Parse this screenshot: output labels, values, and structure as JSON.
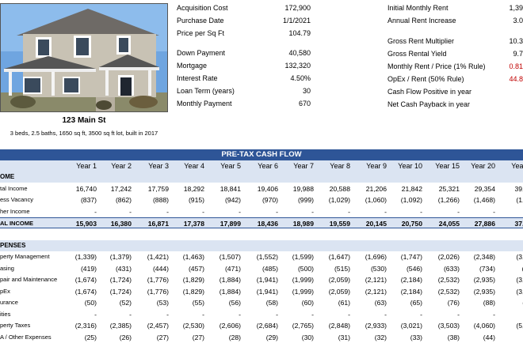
{
  "property": {
    "address": "123 Main St",
    "details": "3 beds, 2.5 baths, 1650 sq ft, 3500 sq ft lot, built in 2017"
  },
  "purchase": [
    {
      "label": "Acquisition Cost",
      "value": "172,900"
    },
    {
      "label": "Purchase Date",
      "value": "1/1/2021"
    },
    {
      "label": "Price per Sq Ft",
      "value": "104.79"
    }
  ],
  "financing": [
    {
      "label": "Down Payment",
      "value": "40,580"
    },
    {
      "label": "Mortgage",
      "value": "132,320"
    },
    {
      "label": "Interest Rate",
      "value": "4.50%"
    },
    {
      "label": "Loan Term (years)",
      "value": "30"
    },
    {
      "label": "Monthly Payment",
      "value": "670"
    }
  ],
  "rent_top": [
    {
      "label": "Initial Monthly Rent",
      "value": "1,39"
    },
    {
      "label": "Annual Rent Increase",
      "value": "3.0"
    }
  ],
  "metrics": [
    {
      "label": "Gross Rent Multiplier",
      "value": "10.3",
      "red": false
    },
    {
      "label": "Gross Rental Yield",
      "value": "9.7",
      "red": false
    },
    {
      "label": "Monthly Rent / Price (1% Rule)",
      "value": "0.81",
      "red": true
    },
    {
      "label": "OpEx / Rent (50% Rule)",
      "value": "44.8",
      "red": true
    },
    {
      "label": "Cash Flow Positive in year",
      "value": "",
      "red": false
    },
    {
      "label": "Net Cash Payback in year",
      "value": "",
      "red": false
    }
  ],
  "cashflow": {
    "title": "PRE-TAX CASH FLOW",
    "years": [
      "Year 1",
      "Year 2",
      "Year 3",
      "Year 4",
      "Year 5",
      "Year 6",
      "Year 7",
      "Year 8",
      "Year 9",
      "Year 10",
      "Year 15",
      "Year 20",
      "Year 3"
    ],
    "income_header": "OME",
    "income_rows": [
      {
        "label": "tal Income",
        "values": [
          "16,740",
          "17,242",
          "17,759",
          "18,292",
          "18,841",
          "19,406",
          "19,988",
          "20,588",
          "21,206",
          "21,842",
          "25,321",
          "29,354",
          "39,44"
        ]
      },
      {
        "label": "ess Vacancy",
        "values": [
          "(837)",
          "(862)",
          "(888)",
          "(915)",
          "(942)",
          "(970)",
          "(999)",
          "(1,029)",
          "(1,060)",
          "(1,092)",
          "(1,266)",
          "(1,468)",
          "(1,97"
        ]
      },
      {
        "label": "her Income",
        "values": [
          "-",
          "-",
          "-",
          "-",
          "-",
          "-",
          "-",
          "-",
          "-",
          "-",
          "-",
          "-",
          "-"
        ]
      }
    ],
    "income_total": {
      "label": "AL INCOME",
      "values": [
        "15,903",
        "16,380",
        "16,871",
        "17,378",
        "17,899",
        "18,436",
        "18,989",
        "19,559",
        "20,145",
        "20,750",
        "24,055",
        "27,886",
        "37,47"
      ]
    },
    "expense_header": "PENSES",
    "expense_rows": [
      {
        "label": "perty Management",
        "values": [
          "(1,339)",
          "(1,379)",
          "(1,421)",
          "(1,463)",
          "(1,507)",
          "(1,552)",
          "(1,599)",
          "(1,647)",
          "(1,696)",
          "(1,747)",
          "(2,026)",
          "(2,348)",
          "(3,15"
        ]
      },
      {
        "label": "asing",
        "values": [
          "(419)",
          "(431)",
          "(444)",
          "(457)",
          "(471)",
          "(485)",
          "(500)",
          "(515)",
          "(530)",
          "(546)",
          "(633)",
          "(734)",
          "(98"
        ]
      },
      {
        "label": "pair and Maintenance",
        "values": [
          "(1,674)",
          "(1,724)",
          "(1,776)",
          "(1,829)",
          "(1,884)",
          "(1,941)",
          "(1,999)",
          "(2,059)",
          "(2,121)",
          "(2,184)",
          "(2,532)",
          "(2,935)",
          "(3,94"
        ]
      },
      {
        "label": "pEx",
        "values": [
          "(1,674)",
          "(1,724)",
          "(1,776)",
          "(1,829)",
          "(1,884)",
          "(1,941)",
          "(1,999)",
          "(2,059)",
          "(2,121)",
          "(2,184)",
          "(2,532)",
          "(2,935)",
          "(3,94"
        ]
      },
      {
        "label": "urance",
        "values": [
          "(50)",
          "(52)",
          "(53)",
          "(55)",
          "(56)",
          "(58)",
          "(60)",
          "(61)",
          "(63)",
          "(65)",
          "(76)",
          "(88)",
          "(11"
        ]
      },
      {
        "label": "ities",
        "values": [
          "-",
          "-",
          "-",
          "-",
          "-",
          "-",
          "-",
          "-",
          "-",
          "-",
          "-",
          "-",
          "-"
        ]
      },
      {
        "label": "perty Taxes",
        "values": [
          "(2,316)",
          "(2,385)",
          "(2,457)",
          "(2,530)",
          "(2,606)",
          "(2,684)",
          "(2,765)",
          "(2,848)",
          "(2,933)",
          "(3,021)",
          "(3,503)",
          "(4,060)",
          "(5,45"
        ]
      },
      {
        "label": "A / Other Expenses",
        "values": [
          "(25)",
          "(26)",
          "(27)",
          "(27)",
          "(28)",
          "(29)",
          "(30)",
          "(31)",
          "(32)",
          "(33)",
          "(38)",
          "(44)",
          "(5"
        ]
      }
    ]
  }
}
